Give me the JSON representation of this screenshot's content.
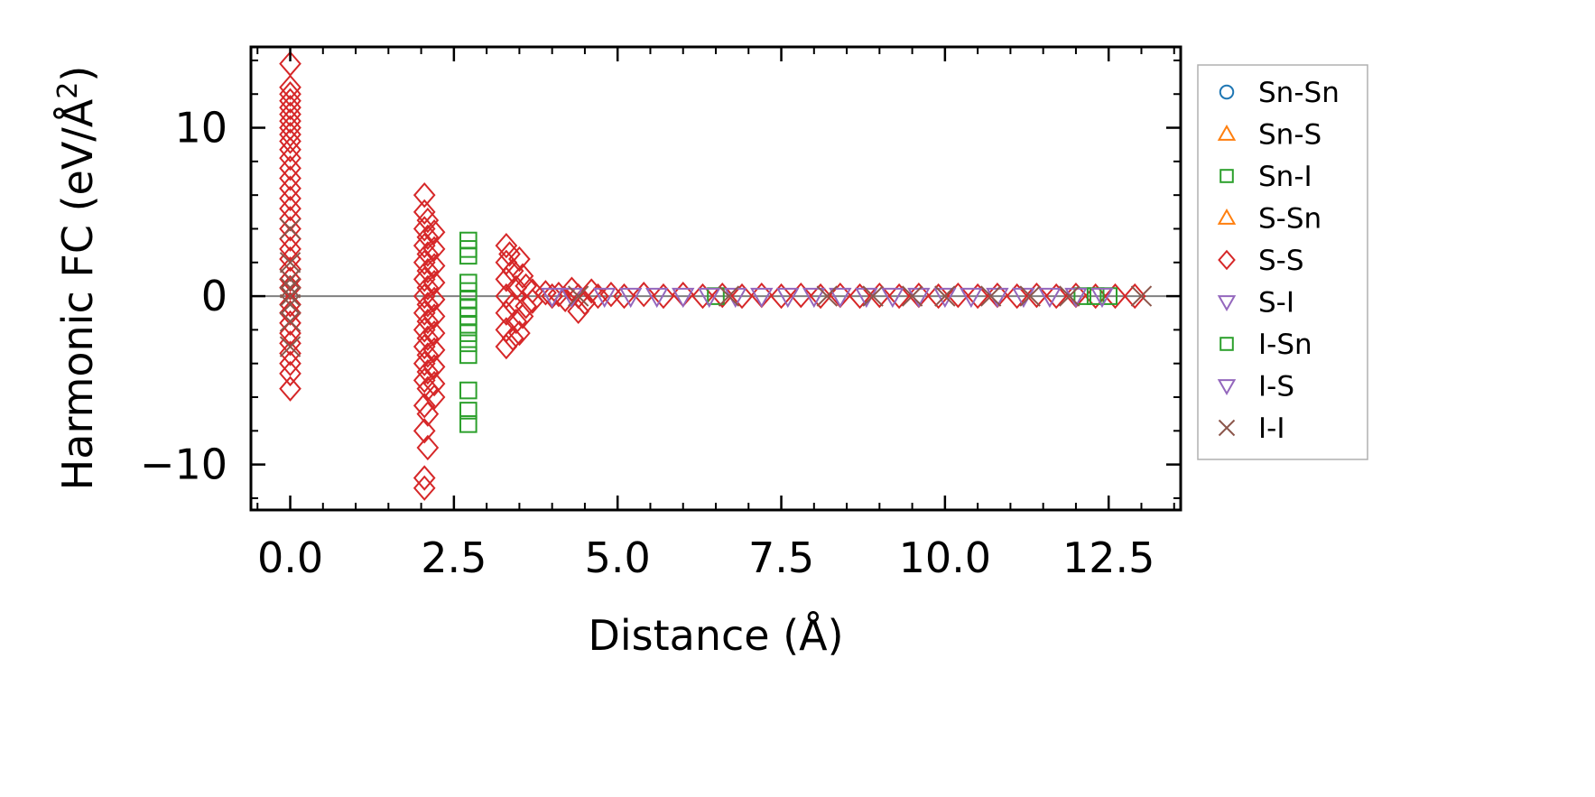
{
  "chart_data": {
    "type": "scatter",
    "title": "",
    "xlabel": "Distance (Å)",
    "ylabel_main": "Harmonic FC (eV/Å",
    "ylabel_sup": "2",
    "ylabel_close": ")",
    "xlim": [
      -0.6,
      13.6
    ],
    "ylim": [
      -12.7,
      14.8
    ],
    "xticks": [
      0.0,
      2.5,
      5.0,
      7.5,
      10.0,
      12.5
    ],
    "xtick_labels": [
      "0.0",
      "2.5",
      "5.0",
      "7.5",
      "10.0",
      "12.5"
    ],
    "yticks": [
      -10,
      0,
      10
    ],
    "ytick_labels": [
      "−10",
      "0",
      "10"
    ],
    "zero_line": 0,
    "grid": false,
    "legend_position": "outside-right",
    "legend": [
      {
        "label": "Sn-Sn",
        "marker": "circle",
        "color": "#1f77b4"
      },
      {
        "label": "Sn-S",
        "marker": "triangle-up",
        "color": "#ff7f0e"
      },
      {
        "label": "Sn-I",
        "marker": "square",
        "color": "#2ca02c"
      },
      {
        "label": "S-Sn",
        "marker": "triangle-up",
        "color": "#ff7f0e"
      },
      {
        "label": "S-S",
        "marker": "diamond",
        "color": "#d62728"
      },
      {
        "label": "S-I",
        "marker": "triangle-down",
        "color": "#9467bd"
      },
      {
        "label": "I-Sn",
        "marker": "square",
        "color": "#2ca02c"
      },
      {
        "label": "I-S",
        "marker": "triangle-down",
        "color": "#9467bd"
      },
      {
        "label": "I-I",
        "marker": "x",
        "color": "#8c564b"
      }
    ],
    "series": [
      {
        "name": "S-S",
        "marker": "diamond",
        "color": "#d62728",
        "points": [
          [
            0.0,
            13.8
          ],
          [
            0.0,
            12.4
          ],
          [
            0.0,
            12.0
          ],
          [
            0.0,
            11.6
          ],
          [
            0.0,
            11.2
          ],
          [
            0.0,
            10.8
          ],
          [
            0.0,
            10.4
          ],
          [
            0.0,
            10.0
          ],
          [
            0.0,
            9.6
          ],
          [
            0.0,
            9.2
          ],
          [
            0.0,
            8.7
          ],
          [
            0.0,
            8.2
          ],
          [
            0.0,
            7.6
          ],
          [
            0.0,
            7.0
          ],
          [
            0.0,
            6.4
          ],
          [
            0.0,
            5.8
          ],
          [
            0.0,
            5.2
          ],
          [
            0.0,
            4.6
          ],
          [
            0.0,
            4.0
          ],
          [
            0.0,
            3.4
          ],
          [
            0.0,
            2.8
          ],
          [
            0.0,
            2.2
          ],
          [
            0.0,
            1.6
          ],
          [
            0.0,
            1.0
          ],
          [
            0.0,
            0.5
          ],
          [
            0.0,
            -0.5
          ],
          [
            0.0,
            -1.0
          ],
          [
            0.0,
            -1.6
          ],
          [
            0.0,
            -2.2
          ],
          [
            0.0,
            -2.8
          ],
          [
            0.0,
            -3.4
          ],
          [
            0.0,
            -4.0
          ],
          [
            0.0,
            -4.6
          ],
          [
            0.0,
            -5.5
          ],
          [
            2.05,
            6.0
          ],
          [
            2.05,
            5.0
          ],
          [
            2.1,
            4.5
          ],
          [
            2.05,
            4.0
          ],
          [
            2.1,
            3.5
          ],
          [
            2.05,
            3.0
          ],
          [
            2.1,
            2.5
          ],
          [
            2.05,
            2.0
          ],
          [
            2.1,
            1.5
          ],
          [
            2.05,
            1.0
          ],
          [
            2.1,
            0.5
          ],
          [
            2.05,
            0.0
          ],
          [
            2.1,
            -0.5
          ],
          [
            2.05,
            -1.0
          ],
          [
            2.1,
            -1.5
          ],
          [
            2.05,
            -2.0
          ],
          [
            2.1,
            -2.5
          ],
          [
            2.05,
            -3.0
          ],
          [
            2.1,
            -3.5
          ],
          [
            2.05,
            -4.0
          ],
          [
            2.1,
            -4.5
          ],
          [
            2.05,
            -5.0
          ],
          [
            2.1,
            -5.5
          ],
          [
            2.05,
            -6.5
          ],
          [
            2.1,
            -7.0
          ],
          [
            2.05,
            -8.0
          ],
          [
            2.1,
            -9.0
          ],
          [
            2.05,
            -10.8
          ],
          [
            2.05,
            -11.4
          ],
          [
            2.2,
            3.8
          ],
          [
            2.2,
            2.8
          ],
          [
            2.2,
            1.8
          ],
          [
            2.2,
            0.8
          ],
          [
            2.2,
            -0.2
          ],
          [
            2.2,
            -1.2
          ],
          [
            2.2,
            -2.2
          ],
          [
            2.2,
            -3.2
          ],
          [
            2.2,
            -4.2
          ],
          [
            2.2,
            -5.2
          ],
          [
            2.2,
            -6.0
          ],
          [
            3.3,
            3.0
          ],
          [
            3.35,
            2.5
          ],
          [
            3.3,
            2.0
          ],
          [
            3.4,
            1.5
          ],
          [
            3.3,
            1.0
          ],
          [
            3.45,
            0.5
          ],
          [
            3.3,
            0.0
          ],
          [
            3.4,
            -0.5
          ],
          [
            3.3,
            -1.0
          ],
          [
            3.45,
            -1.5
          ],
          [
            3.3,
            -2.0
          ],
          [
            3.4,
            -2.5
          ],
          [
            3.3,
            -3.0
          ],
          [
            3.5,
            2.2
          ],
          [
            3.5,
            -2.2
          ],
          [
            3.55,
            1.2
          ],
          [
            3.55,
            -1.2
          ],
          [
            3.6,
            0.6
          ],
          [
            3.6,
            -0.6
          ],
          [
            3.7,
            0.3
          ],
          [
            3.7,
            -0.3
          ],
          [
            3.9,
            0.2
          ],
          [
            4.0,
            0.0
          ],
          [
            4.1,
            0.1
          ],
          [
            4.2,
            -0.2
          ],
          [
            4.3,
            0.4
          ],
          [
            4.4,
            0.0
          ],
          [
            4.5,
            -0.4
          ],
          [
            4.4,
            -0.9
          ],
          [
            4.6,
            0.3
          ],
          [
            4.7,
            0.0
          ],
          [
            4.9,
            0.1
          ],
          [
            5.1,
            0.0
          ],
          [
            5.4,
            0.1
          ],
          [
            5.7,
            0.0
          ],
          [
            6.0,
            0.1
          ],
          [
            6.3,
            0.0
          ],
          [
            6.6,
            0.05
          ],
          [
            6.9,
            0.0
          ],
          [
            7.2,
            0.05
          ],
          [
            7.5,
            0.0
          ],
          [
            7.8,
            0.05
          ],
          [
            8.1,
            0.0
          ],
          [
            8.4,
            0.05
          ],
          [
            8.7,
            0.0
          ],
          [
            9.0,
            0.05
          ],
          [
            9.3,
            0.0
          ],
          [
            9.6,
            0.05
          ],
          [
            9.9,
            0.0
          ],
          [
            10.2,
            0.05
          ],
          [
            10.5,
            0.0
          ],
          [
            10.8,
            0.05
          ],
          [
            11.1,
            0.0
          ],
          [
            11.4,
            0.05
          ],
          [
            11.7,
            0.0
          ],
          [
            12.0,
            0.05
          ],
          [
            12.3,
            0.0
          ],
          [
            12.6,
            0.0
          ],
          [
            12.9,
            0.0
          ]
        ]
      },
      {
        "name": "Sn-I",
        "marker": "square",
        "color": "#2ca02c",
        "points": [
          [
            2.72,
            3.3
          ],
          [
            2.72,
            2.8
          ],
          [
            2.72,
            2.4
          ],
          [
            2.72,
            0.8
          ],
          [
            2.72,
            0.3
          ],
          [
            2.72,
            -0.2
          ],
          [
            2.72,
            -0.7
          ],
          [
            2.72,
            -1.2
          ],
          [
            2.72,
            -1.7
          ],
          [
            2.72,
            -2.2
          ],
          [
            2.72,
            -2.8
          ],
          [
            2.72,
            -3.5
          ],
          [
            2.72,
            -5.6
          ],
          [
            2.72,
            -6.8
          ],
          [
            2.72,
            -7.6
          ],
          [
            6.5,
            0.0
          ],
          [
            12.1,
            0.0
          ],
          [
            12.3,
            0.0
          ],
          [
            12.5,
            0.0
          ]
        ]
      },
      {
        "name": "S-I",
        "marker": "triangle-down",
        "color": "#9467bd",
        "points": [
          [
            4.0,
            0.0
          ],
          [
            4.3,
            0.0
          ],
          [
            4.8,
            0.0
          ],
          [
            5.2,
            0.0
          ],
          [
            5.6,
            0.0
          ],
          [
            6.0,
            0.0
          ],
          [
            6.4,
            0.0
          ],
          [
            6.8,
            0.0
          ],
          [
            7.2,
            0.0
          ],
          [
            7.6,
            0.0
          ],
          [
            8.0,
            0.0
          ],
          [
            8.4,
            0.0
          ],
          [
            8.8,
            0.0
          ],
          [
            9.2,
            0.0
          ],
          [
            9.6,
            0.0
          ],
          [
            10.0,
            0.0
          ],
          [
            10.4,
            0.0
          ],
          [
            10.8,
            0.0
          ],
          [
            11.2,
            0.0
          ],
          [
            11.6,
            0.0
          ],
          [
            12.0,
            0.0
          ],
          [
            12.4,
            0.0
          ]
        ]
      },
      {
        "name": "I-I",
        "marker": "x",
        "color": "#8c564b",
        "points": [
          [
            0.0,
            4.0
          ],
          [
            0.0,
            2.0
          ],
          [
            0.0,
            1.0
          ],
          [
            0.0,
            0.5
          ],
          [
            0.0,
            0.0
          ],
          [
            0.0,
            -0.5
          ],
          [
            0.0,
            -1.5
          ],
          [
            0.0,
            -3.0
          ],
          [
            4.4,
            0.0
          ],
          [
            6.7,
            0.0
          ],
          [
            8.2,
            0.0
          ],
          [
            8.9,
            0.0
          ],
          [
            9.5,
            0.0
          ],
          [
            10.0,
            0.0
          ],
          [
            10.7,
            0.0
          ],
          [
            11.3,
            0.0
          ],
          [
            11.9,
            0.0
          ],
          [
            13.0,
            0.0
          ]
        ]
      }
    ]
  }
}
